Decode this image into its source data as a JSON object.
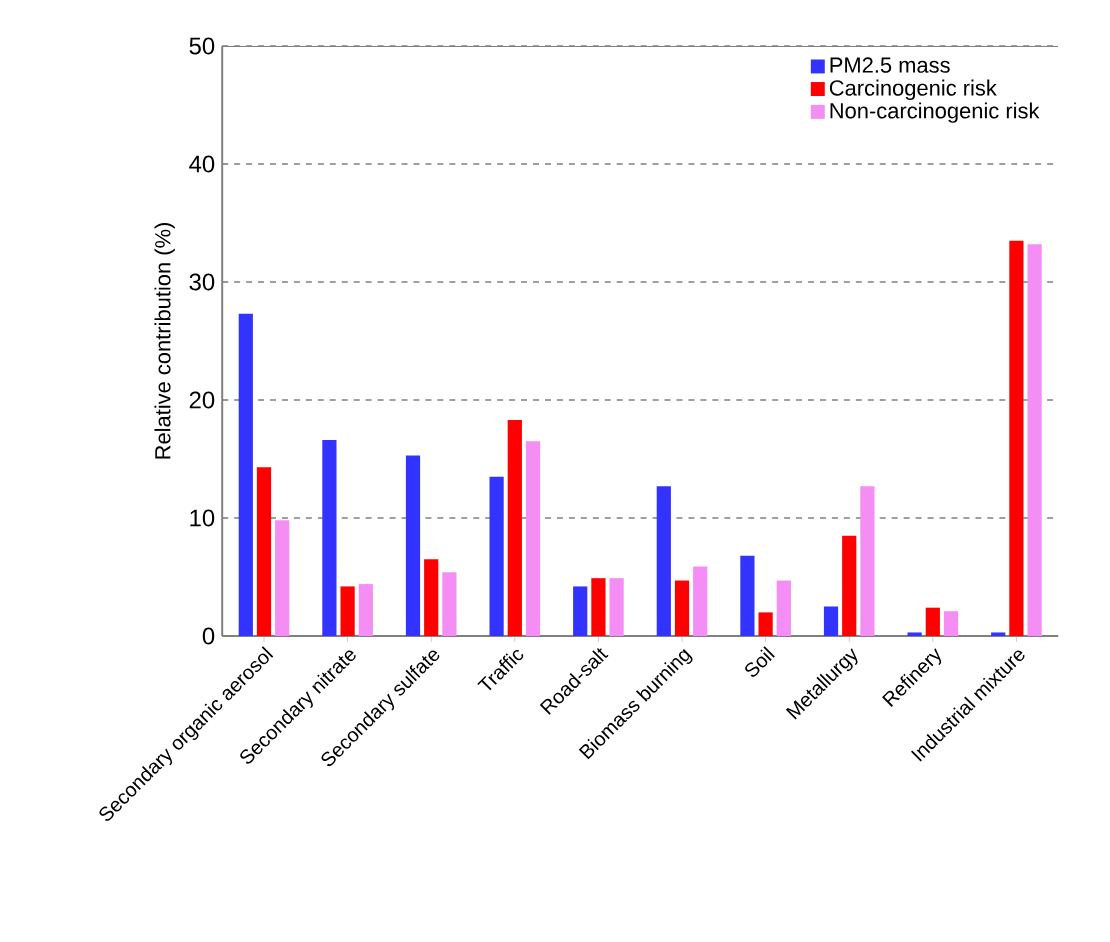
{
  "chart_data": {
    "type": "bar",
    "ylabel": "Relative contribution (%)",
    "categories": [
      "Secondary organic aerosol",
      "Secondary nitrate",
      "Secondary sulfate",
      "Traffic",
      "Road-salt",
      "Biomass burning",
      "Soil",
      "Metallurgy",
      "Refinery",
      "Industrial mixture"
    ],
    "series": [
      {
        "name": "PM2.5 mass",
        "color": "#3333ff",
        "values": [
          27.3,
          16.6,
          15.3,
          13.5,
          4.2,
          12.7,
          6.8,
          2.5,
          0.3,
          0.3
        ]
      },
      {
        "name": "Carcinogenic risk",
        "color": "#ff0000",
        "values": [
          14.3,
          4.2,
          6.5,
          18.3,
          4.9,
          4.7,
          2.0,
          8.5,
          2.4,
          33.5
        ]
      },
      {
        "name": "Non-carcinogenic risk",
        "color": "#f48ef4",
        "values": [
          9.8,
          4.4,
          5.4,
          16.5,
          4.9,
          5.9,
          4.7,
          12.7,
          2.1,
          33.2
        ]
      }
    ],
    "ylim": [
      0,
      50
    ],
    "yticks": [
      0,
      10,
      20,
      30,
      40,
      50
    ],
    "grid": "y",
    "legend": "top right"
  }
}
